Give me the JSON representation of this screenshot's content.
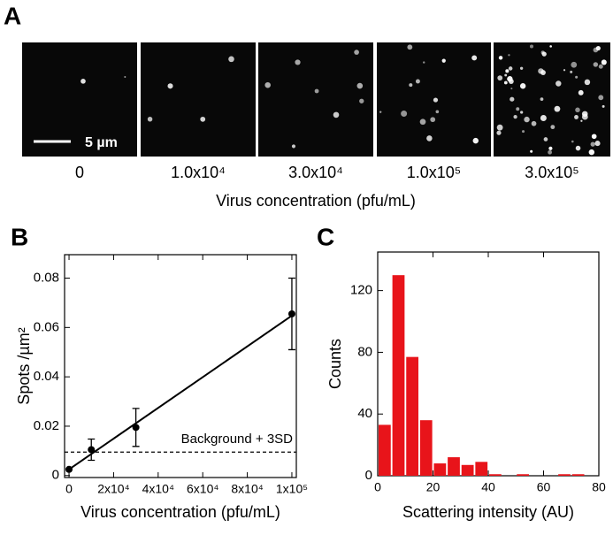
{
  "panel_a": {
    "label": "A",
    "scale_bar": "5 µm",
    "images": [
      {
        "label": "0"
      },
      {
        "label": "1.0x10⁴"
      },
      {
        "label": "3.0x10⁴"
      },
      {
        "label": "1.0x10⁵"
      },
      {
        "label": "3.0x10⁵"
      }
    ],
    "xlabel": "Virus concentration (pfu/mL)"
  },
  "chart_data": [
    {
      "type": "scatter",
      "panel_label": "B",
      "xlabel": "Virus concentration (pfu/mL)",
      "ylabel": "Spots /µm²",
      "x": [
        0,
        10000,
        30000,
        100000
      ],
      "series": [
        {
          "color": "#000000",
          "values": [
            0.0025,
            0.0105,
            0.0195,
            0.0655
          ],
          "errors": [
            null,
            0.0043,
            0.0077,
            0.0145
          ]
        }
      ],
      "fit_line": {
        "x": [
          0,
          100000
        ],
        "values": [
          0.0025,
          0.0648
        ]
      },
      "threshold": {
        "value": 0.0095,
        "label": "Background + 3SD"
      },
      "xlim": [
        -2000,
        102000
      ],
      "xticks": [
        0,
        {
          "value": 20000,
          "label": "2x10⁴"
        },
        {
          "value": 40000,
          "label": "4x10⁴"
        },
        {
          "value": 60000,
          "label": "6x10⁴"
        },
        {
          "value": 80000,
          "label": "8x10⁴"
        },
        {
          "value": 100000,
          "label": "1x10⁵"
        }
      ],
      "ylim": [
        -0.0008,
        0.0895
      ],
      "yticks": [
        0,
        0.02,
        0.04,
        0.06,
        0.08
      ]
    },
    {
      "type": "histogram",
      "panel_label": "C",
      "xlabel": "Scattering intensity (AU)",
      "ylabel": "Counts",
      "color": "#e8141a",
      "bins": [
        0,
        5,
        10,
        15,
        20,
        25,
        30,
        35,
        40,
        45,
        50,
        55,
        60,
        65,
        70,
        75
      ],
      "values": [
        33,
        130,
        77,
        36,
        8,
        12,
        7,
        9,
        1,
        0,
        1,
        0,
        0,
        1,
        1
      ],
      "xlim": [
        0,
        80
      ],
      "xticks": [
        0,
        20,
        40,
        60,
        80
      ],
      "ylim": [
        0,
        145
      ],
      "yticks": [
        0,
        40,
        80,
        120
      ]
    }
  ]
}
